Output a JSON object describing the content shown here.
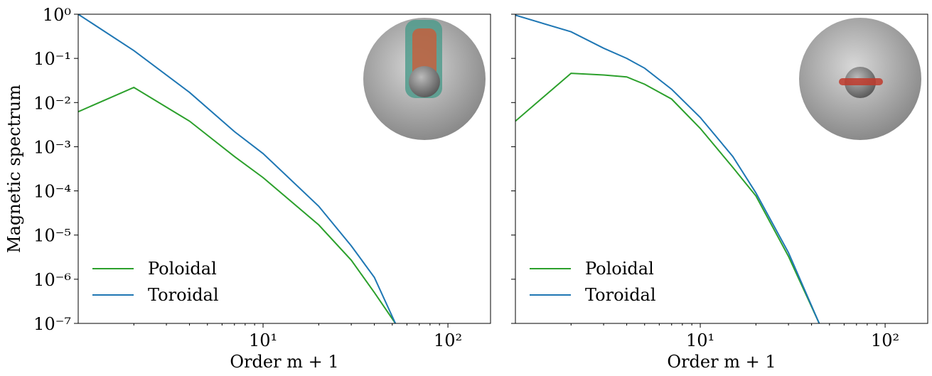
{
  "chart_data": [
    {
      "type": "line",
      "y_label": "Magnetic spectrum",
      "x_label": "Order m + 1",
      "log_x": true,
      "log_y": true,
      "legend": "lower left",
      "ytick_labels": true,
      "xlim": [
        1,
        170
      ],
      "ylim": [
        1e-07,
        1
      ],
      "xticks": [
        {
          "value": 10,
          "label": "10¹"
        },
        {
          "value": 100,
          "label": "10²"
        }
      ],
      "yticks": [
        {
          "value": 1e-07,
          "label": "10⁻⁷"
        },
        {
          "value": 1e-06,
          "label": "10⁻⁶"
        },
        {
          "value": 1e-05,
          "label": "10⁻⁵"
        },
        {
          "value": 0.0001,
          "label": "10⁻⁴"
        },
        {
          "value": 0.001,
          "label": "10⁻³"
        },
        {
          "value": 0.01,
          "label": "10⁻²"
        },
        {
          "value": 0.1,
          "label": "10⁻¹"
        },
        {
          "value": 1,
          "label": "10⁰"
        }
      ],
      "x": [
        1,
        2,
        4,
        7,
        10,
        20,
        30,
        40,
        52
      ],
      "series": [
        {
          "name": "Poloidal",
          "color": "#2ca02c",
          "values": [
            0.0062,
            0.022,
            0.0038,
            0.0006,
            0.0002,
            1.7e-05,
            2.7e-06,
            5e-07,
            1e-07
          ]
        },
        {
          "name": "Toroidal",
          "color": "#1f77b4",
          "values": [
            1,
            0.15,
            0.017,
            0.0022,
            0.0007,
            4.5e-05,
            5.7e-06,
            1.1e-06,
            1e-07
          ]
        }
      ]
    },
    {
      "type": "line",
      "x_label": "Order m + 1",
      "log_x": true,
      "log_y": true,
      "legend": "lower left",
      "ytick_labels": false,
      "xlim": [
        1,
        170
      ],
      "ylim": [
        1e-07,
        1
      ],
      "xticks": [
        {
          "value": 10,
          "label": "10¹"
        },
        {
          "value": 100,
          "label": "10²"
        }
      ],
      "yticks": [
        1e-07,
        1e-06,
        1e-05,
        0.0001,
        0.001,
        0.01,
        0.1,
        1
      ],
      "x": [
        1,
        2,
        3,
        4,
        5,
        7,
        10,
        15,
        20,
        30,
        44
      ],
      "series": [
        {
          "name": "Poloidal",
          "color": "#2ca02c",
          "values": [
            0.0038,
            0.046,
            0.042,
            0.038,
            0.026,
            0.012,
            0.0026,
            0.00034,
            7.7e-05,
            3.3e-06,
            1e-07
          ]
        },
        {
          "name": "Toroidal",
          "color": "#1f77b4",
          "values": [
            0.95,
            0.4,
            0.17,
            0.1,
            0.06,
            0.02,
            0.0046,
            0.0006,
            9e-05,
            4e-06,
            1e-07
          ]
        }
      ]
    }
  ]
}
